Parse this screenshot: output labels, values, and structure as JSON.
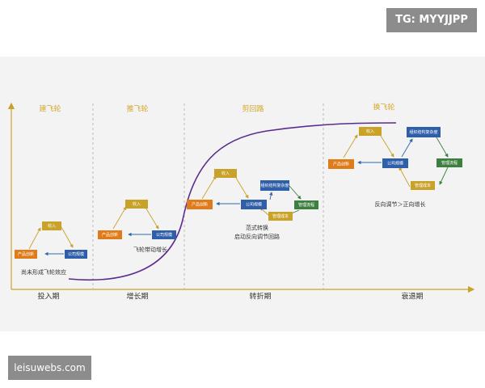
{
  "header": {
    "watermark": "TG: MYYJJPP"
  },
  "footer": {
    "site": "leisuwebs.com"
  },
  "phases": [
    {
      "title": "建飞轮",
      "period": "投入期",
      "nodes": [
        {
          "label": "收入"
        },
        {
          "label": "产品创新"
        },
        {
          "label": "公司规模"
        }
      ],
      "captions": [
        "尚未形成飞轮效应"
      ]
    },
    {
      "title": "推飞轮",
      "period": "增长期",
      "nodes": [
        {
          "label": "收入"
        },
        {
          "label": "产品创新"
        },
        {
          "label": "公司规模"
        }
      ],
      "captions": [
        "飞轮带动增长"
      ]
    },
    {
      "title": "剪回路",
      "period": "转折期",
      "nodes": [
        {
          "label": "收入"
        },
        {
          "label": "产品创新"
        },
        {
          "label": "公司规模"
        },
        {
          "label": "组织结构复杂度"
        },
        {
          "label": "管理流程"
        },
        {
          "label": "管理成本"
        }
      ],
      "captions": [
        "范式转换",
        "启动反向调节回路"
      ]
    },
    {
      "title": "换飞轮",
      "period": "衰退期",
      "nodes": [
        {
          "label": "收入"
        },
        {
          "label": "产品创新"
        },
        {
          "label": "公司规模"
        },
        {
          "label": "组织结构复杂度"
        },
        {
          "label": "管理流程"
        },
        {
          "label": "管理成本"
        }
      ],
      "captions": [
        "反向调节＞正向增长"
      ]
    }
  ]
}
